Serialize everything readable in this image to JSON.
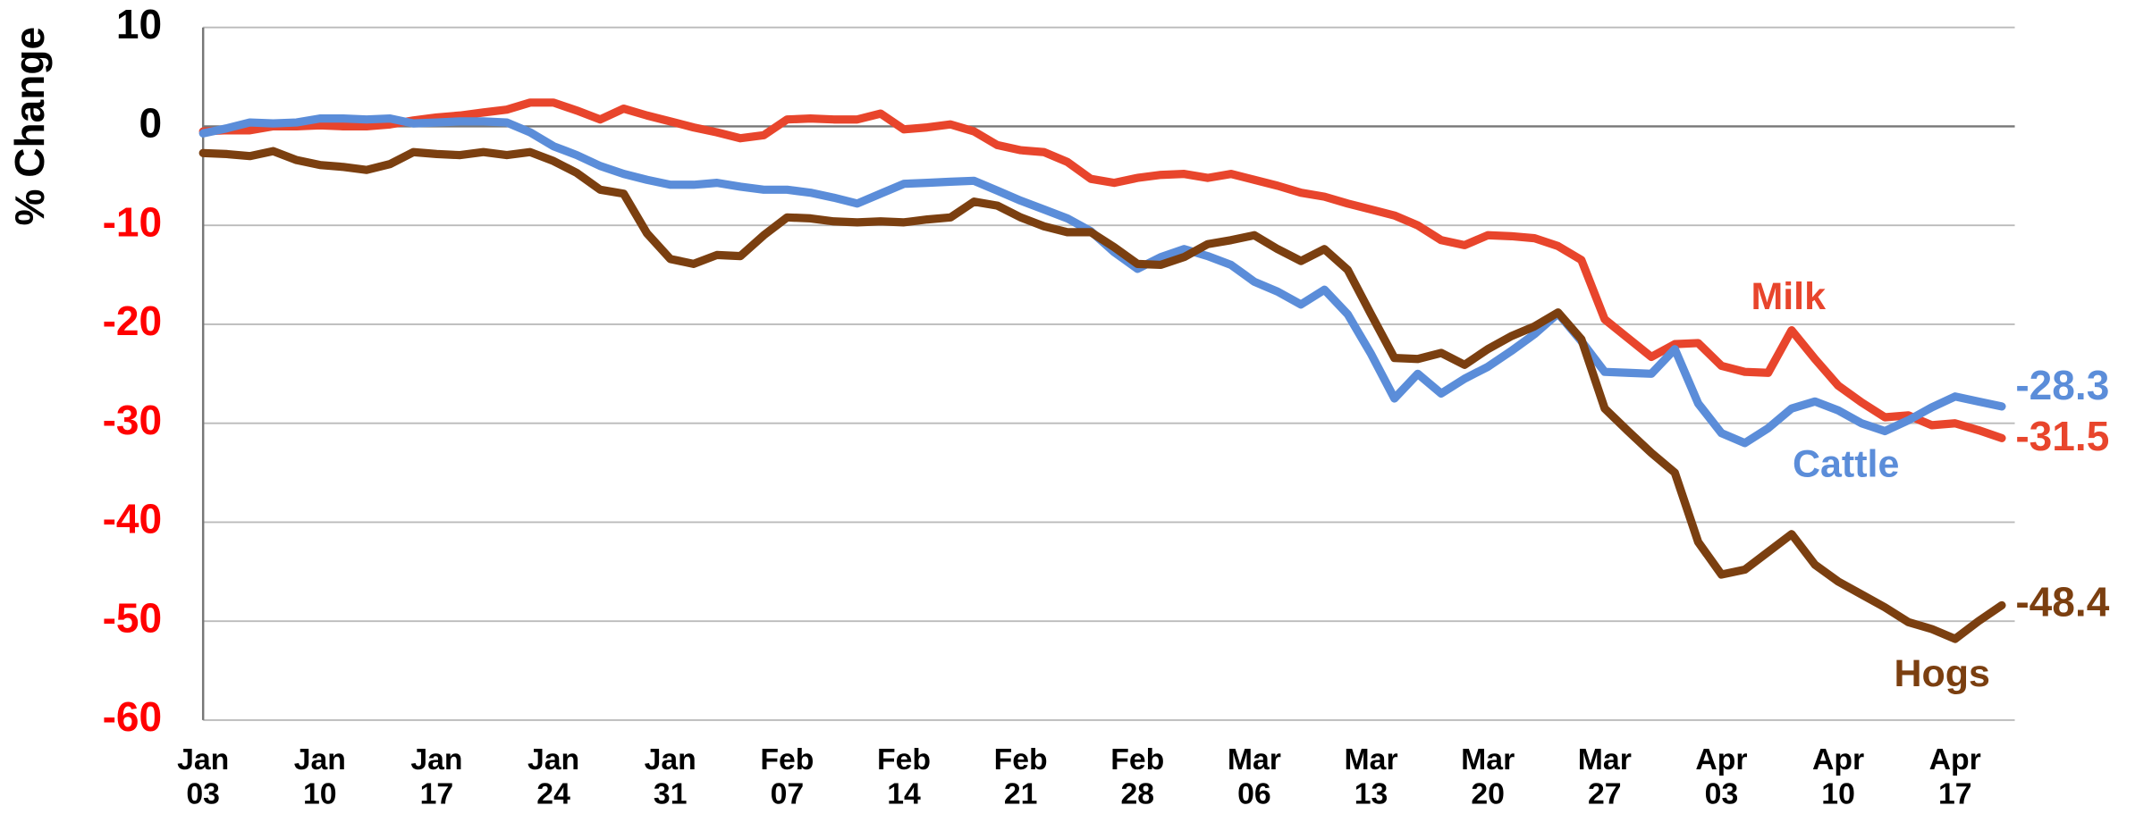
{
  "chart_data": {
    "type": "line",
    "y_label": "% Change",
    "categories": [
      "Jan 03",
      null,
      null,
      null,
      null,
      "Jan 10",
      null,
      null,
      null,
      null,
      "Jan 17",
      null,
      null,
      null,
      null,
      "Jan 24",
      null,
      null,
      null,
      null,
      "Jan 31",
      null,
      null,
      null,
      null,
      "Feb 07",
      null,
      null,
      null,
      null,
      "Feb 14",
      null,
      null,
      null,
      null,
      "Feb 21",
      null,
      null,
      null,
      null,
      "Feb 28",
      null,
      null,
      null,
      null,
      "Mar 06",
      null,
      null,
      null,
      null,
      "Mar 13",
      null,
      null,
      null,
      null,
      "Mar 20",
      null,
      null,
      null,
      null,
      "Mar 27",
      null,
      null,
      null,
      null,
      "Apr 03",
      null,
      null,
      null,
      null,
      "Apr 10",
      null,
      null,
      null,
      null,
      "Apr 17",
      null,
      null
    ],
    "series": [
      {
        "name": "Milk",
        "color": "#e8452c",
        "values": [
          -0.5,
          -0.4,
          -0.4,
          0,
          0,
          0.1,
          0,
          0,
          0.2,
          0.6,
          0.9,
          1.1,
          1.4,
          1.7,
          2.4,
          2.4,
          1.6,
          0.7,
          1.8,
          1.1,
          0.5,
          -0.1,
          -0.6,
          -1.2,
          -0.9,
          0.7,
          0.8,
          0.7,
          0.7,
          1.3,
          -0.3,
          -0.1,
          0.2,
          -0.5,
          -1.9,
          -2.4,
          -2.6,
          -3.6,
          -5.3,
          -5.7,
          -5.2,
          -4.9,
          -4.8,
          -5.2,
          -4.8,
          -5.4,
          -6,
          -6.7,
          -7.1,
          -7.8,
          -8.4,
          -9,
          -10,
          -11.5,
          -12,
          -11,
          -11.1,
          -11.3,
          -12.1,
          -13.5,
          -19.5,
          -21.4,
          -23.3,
          -22,
          -21.9,
          -24.2,
          -24.8,
          -24.9,
          -20.6,
          -23.5,
          -26.2,
          -27.9,
          -29.4,
          -29.2,
          -30.2,
          -30,
          -30.7,
          -31.5
        ]
      },
      {
        "name": "Cattle",
        "color": "#5b8dd9",
        "values": [
          -0.7,
          -0.2,
          0.4,
          0.3,
          0.4,
          0.8,
          0.8,
          0.7,
          0.8,
          0.3,
          0.4,
          0.5,
          0.5,
          0.4,
          -0.6,
          -2,
          -2.9,
          -4,
          -4.8,
          -5.4,
          -5.9,
          -5.9,
          -5.7,
          -6.1,
          -6.4,
          -6.4,
          -6.7,
          -7.2,
          -7.8,
          -6.8,
          -5.8,
          -5.7,
          -5.6,
          -5.5,
          -6.5,
          -7.5,
          -8.4,
          -9.3,
          -10.6,
          -12.7,
          -14.4,
          -13.2,
          -12.4,
          -13.1,
          -14,
          -15.7,
          -16.7,
          -18,
          -16.5,
          -19,
          -23,
          -27.5,
          -25,
          -27,
          -25.5,
          -24.3,
          -22.7,
          -21,
          -18.9,
          -21.7,
          -24.8,
          -24.9,
          -25,
          -22.5,
          -28,
          -31,
          -32,
          -30.5,
          -28.5,
          -27.8,
          -28.7,
          -30,
          -30.8,
          -29.7,
          -28.4,
          -27.3,
          -27.8,
          -28.3
        ]
      },
      {
        "name": "Hogs",
        "color": "#7b3f10",
        "values": [
          -2.7,
          -2.8,
          -3,
          -2.5,
          -3.4,
          -3.9,
          -4.1,
          -4.4,
          -3.8,
          -2.6,
          -2.8,
          -2.9,
          -2.6,
          -2.9,
          -2.6,
          -3.5,
          -4.7,
          -6.4,
          -6.8,
          -10.8,
          -13.4,
          -13.9,
          -13,
          -13.1,
          -11,
          -9.2,
          -9.3,
          -9.6,
          -9.7,
          -9.6,
          -9.7,
          -9.4,
          -9.2,
          -7.6,
          -8,
          -9.2,
          -10.1,
          -10.7,
          -10.7,
          -12.2,
          -13.9,
          -14,
          -13.2,
          -11.9,
          -11.5,
          -11,
          -12.4,
          -13.6,
          -12.4,
          -14.5,
          -19,
          -23.4,
          -23.5,
          -22.9,
          -24.1,
          -22.5,
          -21.2,
          -20.2,
          -18.8,
          -21.5,
          -28.5,
          -30.8,
          -33,
          -35,
          -42,
          -45.3,
          -44.8,
          -43,
          -41.2,
          -44.3,
          -46,
          -47.3,
          -48.6,
          -50.1,
          -50.8,
          -51.8,
          -50,
          -48.4
        ]
      }
    ],
    "ylim": [
      -60,
      10
    ],
    "yticks": [
      10,
      0,
      -10,
      -20,
      -30,
      -40,
      -50,
      -60
    ],
    "grid": true
  }
}
